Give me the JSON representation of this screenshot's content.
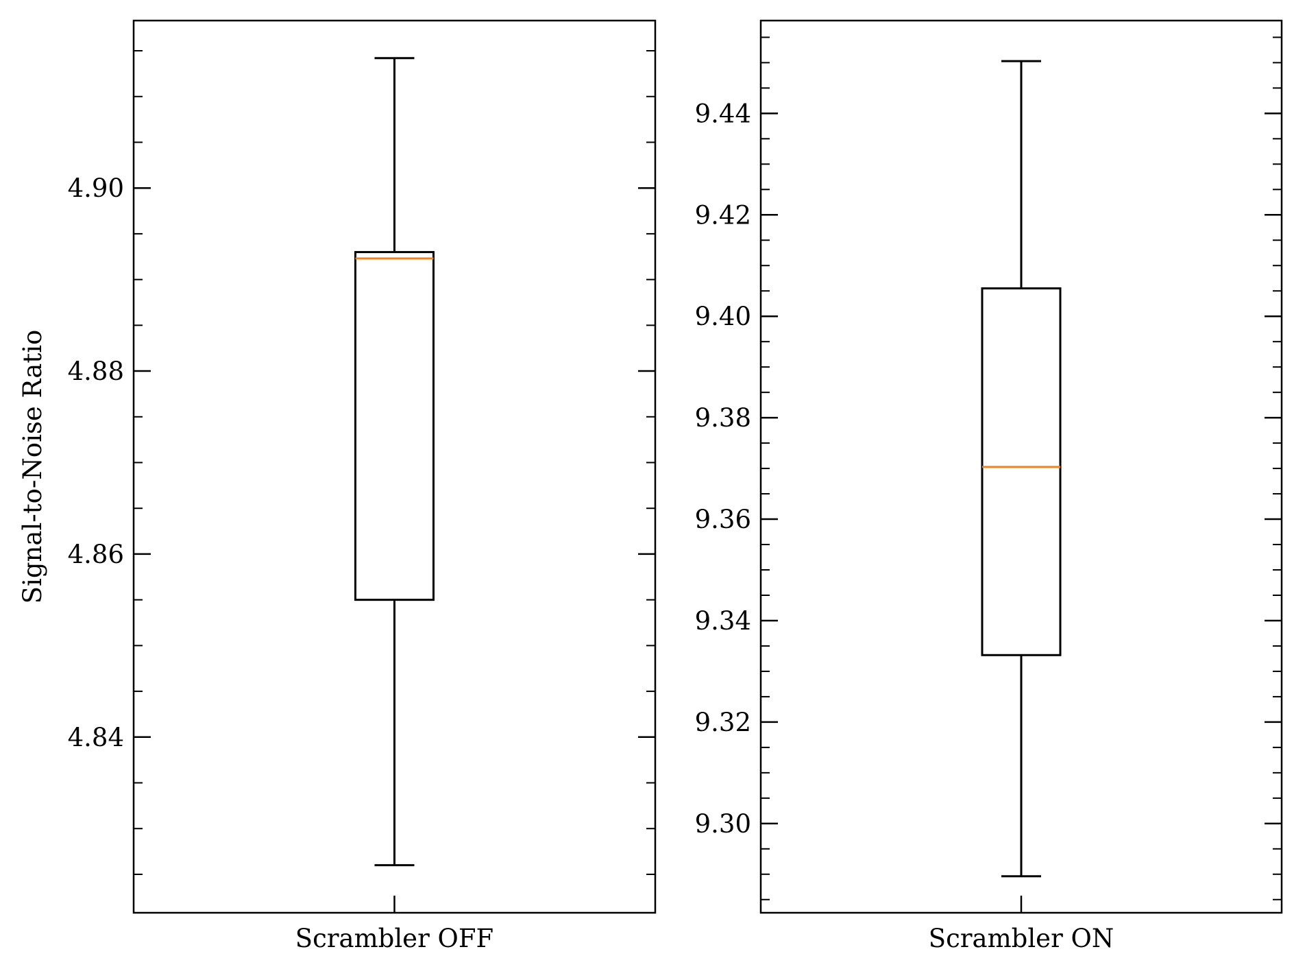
{
  "chart_data": [
    {
      "type": "box",
      "title": "",
      "xlabel": "",
      "ylabel": "Signal-to-Noise Ratio",
      "categories": [
        "Scrambler OFF"
      ],
      "ylim": [
        4.8208,
        4.9183
      ],
      "yticks": [
        4.84,
        4.86,
        4.88,
        4.9
      ],
      "ytick_labels": [
        "4.84",
        "4.86",
        "4.88",
        "4.90"
      ],
      "minor_tick_step": 0.005,
      "box": {
        "whisker_low": 4.826,
        "q1": 4.855,
        "median": 4.8923,
        "q3": 4.893,
        "whisker_high": 4.9142
      },
      "grid": false,
      "legend": "none"
    },
    {
      "type": "box",
      "title": "",
      "xlabel": "",
      "ylabel": "",
      "categories": [
        "Scrambler ON"
      ],
      "ylim": [
        9.2824,
        9.4583
      ],
      "yticks": [
        9.3,
        9.32,
        9.34,
        9.36,
        9.38,
        9.4,
        9.42,
        9.44
      ],
      "ytick_labels": [
        "9.30",
        "9.32",
        "9.34",
        "9.36",
        "9.38",
        "9.40",
        "9.42",
        "9.44"
      ],
      "minor_tick_step": 0.005,
      "box": {
        "whisker_low": 9.2896,
        "q1": 9.3332,
        "median": 9.3703,
        "q3": 9.4055,
        "whisker_high": 9.4503
      },
      "grid": false,
      "legend": "none"
    }
  ],
  "colors": {
    "box_edge": "#000000",
    "median_line": "#ff7f0e",
    "frame": "#000000"
  }
}
